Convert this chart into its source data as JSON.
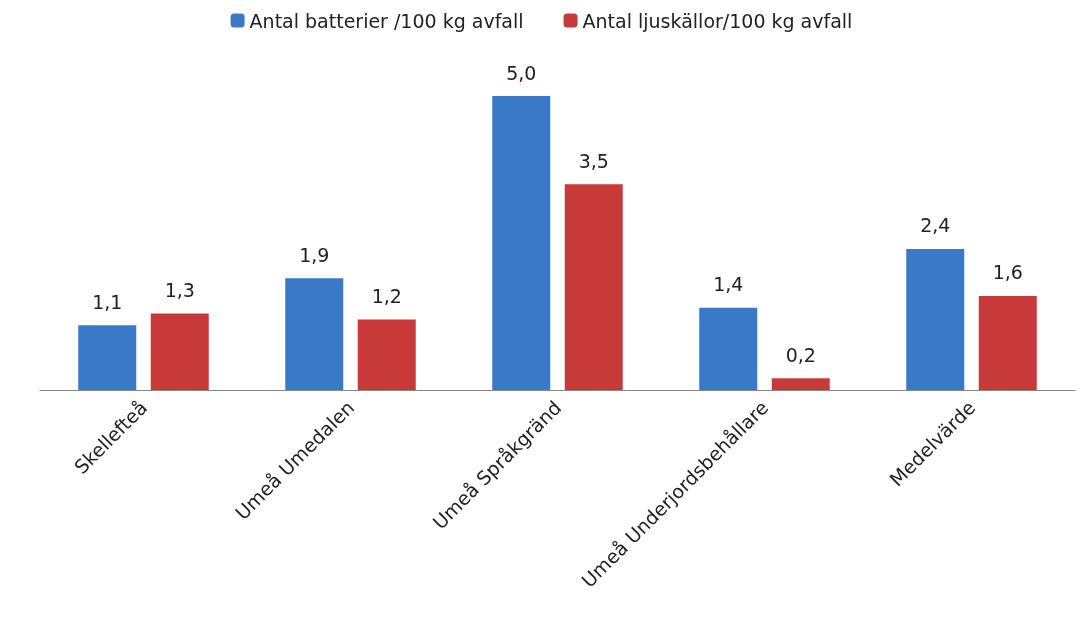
{
  "chart_data": {
    "type": "bar",
    "categories": [
      "Skellefteå",
      "Umeå Umedalen",
      "Umeå Språkgränd",
      "Umeå Underjordsbehållare",
      "Medelvärde"
    ],
    "series": [
      {
        "name": "Antal batterier /100 kg avfall",
        "color": "#3a78c8",
        "values": [
          1.1,
          1.9,
          5.0,
          1.4,
          2.4
        ],
        "value_labels": [
          "1,1",
          "1,9",
          "5,0",
          "1,4",
          "2,4"
        ]
      },
      {
        "name": "Antal ljuskällor/100 kg avfall",
        "color": "#c83a3a",
        "values": [
          1.3,
          1.2,
          3.5,
          0.2,
          1.6
        ],
        "value_labels": [
          "1,3",
          "1,2",
          "3,5",
          "0,2",
          "1,6"
        ]
      }
    ],
    "legend": "top",
    "grid": false
  }
}
